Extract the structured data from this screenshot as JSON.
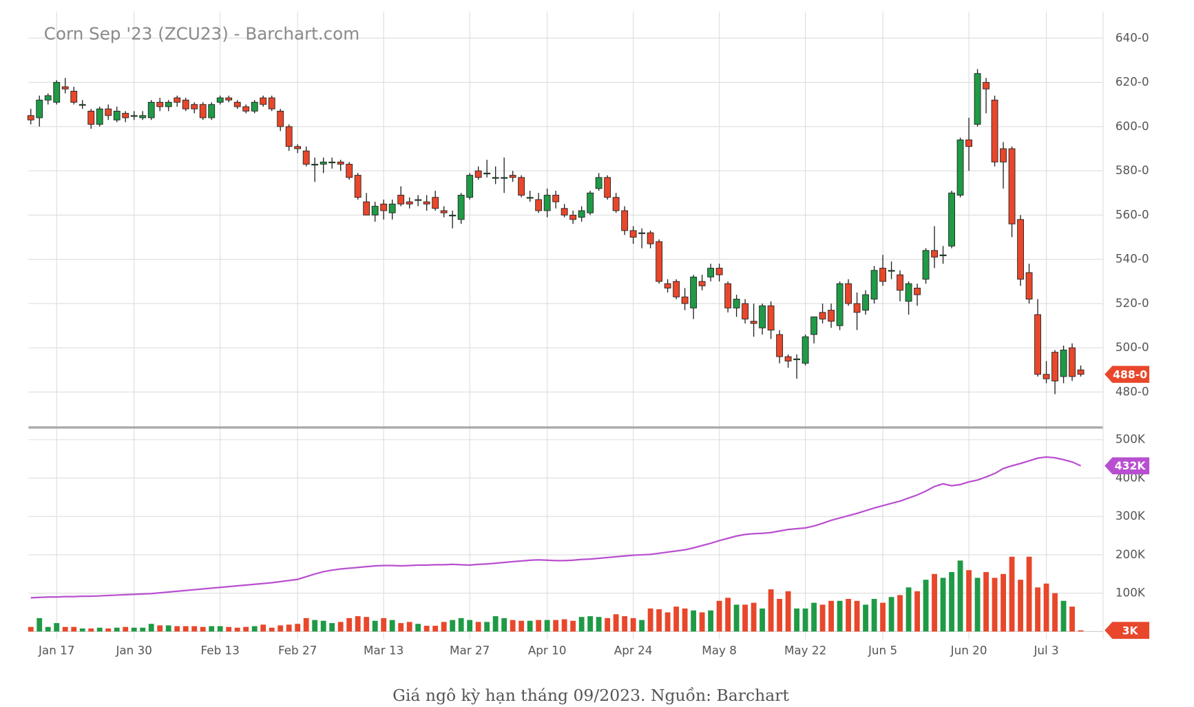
{
  "chart_data": {
    "type": "candlestick",
    "title": "Corn Sep '23 (ZCU23) - Barchart.com",
    "caption": "Giá ngô kỳ hạn tháng 09/2023. Nguồn: Barchart",
    "categories": [
      null,
      null,
      null,
      "Jan 17",
      null,
      null,
      null,
      null,
      null,
      null,
      null,
      null,
      "Jan 30",
      null,
      null,
      null,
      null,
      null,
      null,
      null,
      null,
      null,
      "Feb 13",
      null,
      null,
      null,
      null,
      null,
      null,
      null,
      null,
      "Feb 27",
      null,
      null,
      null,
      null,
      null,
      null,
      null,
      null,
      null,
      "Mar 13",
      null,
      null,
      null,
      null,
      null,
      null,
      null,
      null,
      null,
      "Mar 27",
      null,
      null,
      null,
      null,
      null,
      null,
      null,
      null,
      "Apr 10",
      null,
      null,
      null,
      null,
      null,
      null,
      null,
      null,
      null,
      "Apr 24",
      null,
      null,
      null,
      null,
      null,
      null,
      null,
      null,
      null,
      "May 8",
      null,
      null,
      null,
      null,
      null,
      null,
      null,
      null,
      null,
      "May 22",
      null,
      null,
      null,
      null,
      null,
      null,
      null,
      null,
      "Jun 5",
      null,
      null,
      null,
      null,
      null,
      null,
      null,
      null,
      null,
      "Jun 20",
      null,
      null,
      null,
      null,
      null,
      null,
      null,
      null,
      "Jul 3",
      null,
      null,
      null,
      null
    ],
    "ohlc": [
      [
        605,
        608,
        601,
        603
      ],
      [
        604,
        614,
        600,
        612
      ],
      [
        612,
        615,
        610,
        614
      ],
      [
        611,
        621,
        610,
        620
      ],
      [
        618,
        622,
        615,
        617
      ],
      [
        616,
        618,
        610,
        611
      ],
      [
        610,
        612,
        608,
        610
      ],
      [
        607,
        608,
        599,
        601
      ],
      [
        601,
        609,
        600,
        608
      ],
      [
        608,
        610,
        603,
        605
      ],
      [
        603,
        609,
        602,
        607
      ],
      [
        606,
        607,
        602,
        604
      ],
      [
        605,
        607,
        603,
        605
      ],
      [
        604,
        607,
        603,
        605
      ],
      [
        604,
        612,
        603,
        611
      ],
      [
        611,
        613,
        607,
        609
      ],
      [
        609,
        612,
        607,
        611
      ],
      [
        613,
        614,
        609,
        611
      ],
      [
        612,
        613,
        607,
        608
      ],
      [
        610,
        611,
        606,
        608
      ],
      [
        610,
        611,
        603,
        604
      ],
      [
        604,
        611,
        603,
        610
      ],
      [
        611,
        614,
        610,
        613
      ],
      [
        613,
        614,
        611,
        612
      ],
      [
        611,
        612,
        608,
        609
      ],
      [
        609,
        610,
        606,
        607
      ],
      [
        607,
        612,
        606,
        611
      ],
      [
        613,
        614,
        609,
        610
      ],
      [
        613,
        614,
        607,
        608
      ],
      [
        607,
        608,
        598,
        600
      ],
      [
        600,
        601,
        589,
        591
      ],
      [
        591,
        592,
        588,
        590
      ],
      [
        589,
        591,
        582,
        583
      ],
      [
        583,
        586,
        575,
        583
      ],
      [
        583,
        586,
        579,
        584
      ],
      [
        584,
        586,
        581,
        584
      ],
      [
        584,
        585,
        580,
        583
      ],
      [
        583,
        584,
        576,
        577
      ],
      [
        578,
        579,
        567,
        568
      ],
      [
        566,
        570,
        560,
        560
      ],
      [
        560,
        566,
        557,
        564
      ],
      [
        565,
        567,
        558,
        562
      ],
      [
        561,
        567,
        558,
        565
      ],
      [
        569,
        573,
        564,
        565
      ],
      [
        566,
        568,
        563,
        565
      ],
      [
        567,
        569,
        564,
        567
      ],
      [
        566,
        569,
        562,
        565
      ],
      [
        568,
        571,
        562,
        563
      ],
      [
        562,
        564,
        559,
        561
      ],
      [
        560,
        562,
        554,
        560
      ],
      [
        558,
        570,
        556,
        569
      ],
      [
        568,
        579,
        567,
        578
      ],
      [
        580,
        582,
        576,
        577
      ],
      [
        579,
        585,
        577,
        579
      ],
      [
        577,
        582,
        574,
        577
      ],
      [
        577,
        586,
        570,
        577
      ],
      [
        578,
        580,
        575,
        577
      ],
      [
        577,
        578,
        568,
        569
      ],
      [
        568,
        571,
        566,
        568
      ],
      [
        567,
        570,
        561,
        562
      ],
      [
        562,
        572,
        559,
        569
      ],
      [
        569,
        571,
        563,
        566
      ],
      [
        563,
        565,
        559,
        560
      ],
      [
        560,
        562,
        556,
        558
      ],
      [
        559,
        564,
        557,
        562
      ],
      [
        561,
        571,
        560,
        570
      ],
      [
        572,
        579,
        571,
        577
      ],
      [
        577,
        578,
        567,
        568
      ],
      [
        568,
        570,
        561,
        562
      ],
      [
        562,
        564,
        551,
        553
      ],
      [
        553,
        555,
        547,
        550
      ],
      [
        552,
        554,
        545,
        552
      ],
      [
        552,
        553,
        545,
        547
      ],
      [
        548,
        549,
        529,
        530
      ],
      [
        529,
        531,
        525,
        527
      ],
      [
        530,
        531,
        522,
        523
      ],
      [
        523,
        527,
        517,
        520
      ],
      [
        518,
        533,
        513,
        532
      ],
      [
        530,
        533,
        526,
        528
      ],
      [
        532,
        538,
        530,
        536
      ],
      [
        536,
        538,
        530,
        533
      ],
      [
        529,
        530,
        516,
        518
      ],
      [
        518,
        524,
        514,
        522
      ],
      [
        520,
        522,
        511,
        513
      ],
      [
        512,
        520,
        505,
        511
      ],
      [
        509,
        520,
        506,
        519
      ],
      [
        519,
        521,
        504,
        508
      ],
      [
        506,
        508,
        493,
        496
      ],
      [
        496,
        497,
        491,
        494
      ],
      [
        495,
        497,
        486,
        495
      ],
      [
        493,
        506,
        492,
        505
      ],
      [
        506,
        514,
        502,
        514
      ],
      [
        516,
        520,
        511,
        513
      ],
      [
        517,
        520,
        509,
        512
      ],
      [
        510,
        530,
        508,
        529
      ],
      [
        529,
        531,
        519,
        520
      ],
      [
        520,
        525,
        508,
        516
      ],
      [
        517,
        526,
        515,
        524
      ],
      [
        522,
        537,
        520,
        535
      ],
      [
        536,
        542,
        528,
        530
      ],
      [
        535,
        539,
        531,
        535
      ],
      [
        533,
        535,
        521,
        526
      ],
      [
        521,
        530,
        515,
        529
      ],
      [
        527,
        529,
        519,
        524
      ],
      [
        531,
        545,
        529,
        544
      ],
      [
        544,
        555,
        536,
        541
      ],
      [
        542,
        546,
        538,
        542
      ],
      [
        546,
        571,
        545,
        570
      ],
      [
        569,
        595,
        568,
        594
      ],
      [
        594,
        604,
        580,
        591
      ],
      [
        601,
        626,
        600,
        624
      ],
      [
        620,
        622,
        606,
        617
      ],
      [
        612,
        614,
        582,
        584
      ],
      [
        590,
        593,
        572,
        584
      ],
      [
        590,
        591,
        550,
        556
      ],
      [
        558,
        560,
        528,
        531
      ],
      [
        534,
        538,
        520,
        522
      ],
      [
        515,
        522,
        487,
        488
      ],
      [
        488,
        494,
        484,
        486
      ],
      [
        498,
        499,
        479,
        485
      ],
      [
        487,
        501,
        484,
        499
      ],
      [
        500,
        502,
        485,
        487
      ],
      [
        490,
        492,
        487,
        488
      ]
    ],
    "up_color": "#1f9a46",
    "down_color": "#e8472b",
    "last_label": "488-0",
    "ylim": [
      464,
      652
    ],
    "yticks": [
      {
        "value": 480,
        "label": "480-0"
      },
      {
        "value": 500,
        "label": "500-0"
      },
      {
        "value": 520,
        "label": "520-0"
      },
      {
        "value": 540,
        "label": "540-0"
      },
      {
        "value": 560,
        "label": "560-0"
      },
      {
        "value": 580,
        "label": "580-0"
      },
      {
        "value": 600,
        "label": "600-0"
      },
      {
        "value": 620,
        "label": "620-0"
      },
      {
        "value": 640,
        "label": "640-0"
      }
    ],
    "volume": {
      "axis": "y2",
      "values": [
        12,
        35,
        12,
        22,
        12,
        12,
        8,
        8,
        10,
        8,
        10,
        12,
        10,
        10,
        20,
        16,
        16,
        14,
        14,
        14,
        12,
        14,
        14,
        12,
        10,
        12,
        14,
        18,
        10,
        16,
        18,
        20,
        35,
        30,
        28,
        22,
        25,
        35,
        40,
        38,
        28,
        35,
        30,
        22,
        25,
        20,
        15,
        15,
        25,
        30,
        35,
        30,
        25,
        25,
        40,
        35,
        30,
        28,
        28,
        30,
        30,
        30,
        32,
        28,
        38,
        40,
        38,
        35,
        45,
        40,
        35,
        30,
        60,
        58,
        50,
        65,
        60,
        55,
        50,
        55,
        80,
        88,
        70,
        70,
        75,
        60,
        110,
        85,
        105,
        60,
        60,
        75,
        70,
        80,
        80,
        85,
        80,
        70,
        85,
        75,
        90,
        95,
        115,
        105,
        135,
        150,
        140,
        155,
        185,
        160,
        140,
        155,
        140,
        150,
        195,
        135,
        195,
        115,
        125,
        100,
        80,
        65,
        3
      ],
      "last_label": "3K"
    },
    "open_interest": {
      "axis": "y2",
      "color": "#b84fd0",
      "values": [
        88,
        89,
        90,
        90,
        91,
        91,
        92,
        92,
        93,
        94,
        95,
        96,
        97,
        98,
        99,
        101,
        103,
        105,
        107,
        109,
        111,
        113,
        115,
        117,
        119,
        121,
        123,
        125,
        127,
        130,
        133,
        136,
        143,
        150,
        156,
        160,
        163,
        165,
        167,
        169,
        171,
        172,
        172,
        171,
        172,
        173,
        173,
        174,
        174,
        175,
        174,
        173,
        175,
        176,
        178,
        180,
        182,
        184,
        186,
        187,
        186,
        185,
        185,
        186,
        188,
        189,
        191,
        193,
        195,
        197,
        199,
        200,
        201,
        204,
        207,
        210,
        213,
        218,
        224,
        230,
        237,
        243,
        249,
        253,
        255,
        256,
        258,
        262,
        266,
        268,
        270,
        275,
        282,
        290,
        296,
        302,
        308,
        315,
        322,
        328,
        334,
        340,
        348,
        356,
        366,
        378,
        385,
        380,
        383,
        390,
        395,
        403,
        412,
        425,
        432,
        438,
        445,
        452,
        455,
        453,
        448,
        442,
        432
      ],
      "last_label": "432K"
    },
    "y2lim": [
      0,
      522
    ],
    "y2ticks": [
      {
        "value": 100,
        "label": "100K"
      },
      {
        "value": 200,
        "label": "200K"
      },
      {
        "value": 300,
        "label": "300K"
      },
      {
        "value": 400,
        "label": "400K"
      },
      {
        "value": 500,
        "label": "500K"
      }
    ],
    "grid": true
  }
}
